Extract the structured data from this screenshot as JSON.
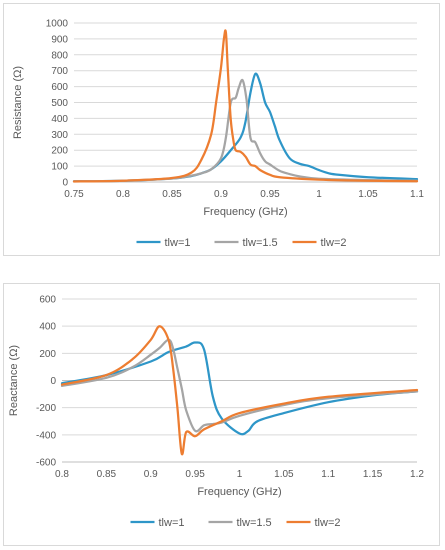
{
  "chart_data": [
    {
      "type": "line",
      "xlabel": "Frequency (GHz)",
      "ylabel": "Resistance (Ω)",
      "xlim": [
        0.75,
        1.1
      ],
      "ylim": [
        0,
        1000
      ],
      "xticks": [
        "0.75",
        "0.8",
        "0.85",
        "0.9",
        "0.95",
        "1",
        "1.05",
        "1.1"
      ],
      "yticks": [
        "0",
        "100",
        "200",
        "300",
        "400",
        "500",
        "600",
        "700",
        "800",
        "900",
        "1000"
      ],
      "grid": "horizontal",
      "legend_position": "bottom",
      "series": [
        {
          "name": "tlw=1",
          "color": "#2e96c8",
          "x": [
            0.75,
            0.8,
            0.85,
            0.87,
            0.88,
            0.89,
            0.9,
            0.91,
            0.92,
            0.925,
            0.93,
            0.935,
            0.94,
            0.945,
            0.95,
            0.955,
            0.96,
            0.97,
            0.98,
            0.99,
            1.0,
            1.01,
            1.02,
            1.05,
            1.1
          ],
          "y": [
            5,
            8,
            22,
            38,
            55,
            80,
            130,
            200,
            280,
            380,
            560,
            680,
            620,
            500,
            440,
            350,
            260,
            150,
            115,
            100,
            75,
            55,
            45,
            30,
            18
          ]
        },
        {
          "name": "tlw=1.5",
          "color": "#a5a5a5",
          "x": [
            0.75,
            0.8,
            0.85,
            0.87,
            0.88,
            0.89,
            0.9,
            0.905,
            0.91,
            0.915,
            0.918,
            0.922,
            0.926,
            0.93,
            0.935,
            0.94,
            0.945,
            0.95,
            0.96,
            0.97,
            0.98,
            1.0,
            1.05,
            1.1
          ],
          "y": [
            5,
            8,
            22,
            40,
            55,
            80,
            150,
            280,
            500,
            530,
            590,
            640,
            520,
            280,
            250,
            180,
            130,
            110,
            70,
            50,
            35,
            20,
            12,
            8
          ]
        },
        {
          "name": "tlw=2",
          "color": "#ed7d31",
          "x": [
            0.75,
            0.8,
            0.85,
            0.87,
            0.88,
            0.89,
            0.895,
            0.9,
            0.903,
            0.905,
            0.907,
            0.91,
            0.913,
            0.915,
            0.92,
            0.925,
            0.93,
            0.935,
            0.94,
            0.95,
            0.96,
            1.0,
            1.05,
            1.1
          ],
          "y": [
            3,
            8,
            25,
            60,
            140,
            300,
            500,
            720,
            900,
            940,
            700,
            390,
            250,
            200,
            190,
            160,
            110,
            100,
            75,
            45,
            30,
            15,
            8,
            5
          ]
        }
      ]
    },
    {
      "type": "line",
      "xlabel": "Frequency (GHz)",
      "ylabel": "Reactance (Ω)",
      "xlim": [
        0.8,
        1.2
      ],
      "ylim": [
        -600,
        600
      ],
      "xticks": [
        "0.8",
        "0.85",
        "0.9",
        "0.95",
        "1",
        "1.05",
        "1.1",
        "1.15",
        "1.2"
      ],
      "yticks": [
        "-600",
        "-400",
        "-200",
        "0",
        "200",
        "400",
        "600"
      ],
      "grid": "horizontal",
      "legend_position": "bottom",
      "series": [
        {
          "name": "tlw=1",
          "color": "#2e96c8",
          "x": [
            0.8,
            0.85,
            0.9,
            0.92,
            0.94,
            0.95,
            0.96,
            0.97,
            0.98,
            1.0,
            1.01,
            1.02,
            1.05,
            1.1,
            1.15,
            1.2
          ],
          "y": [
            -20,
            40,
            140,
            210,
            250,
            280,
            230,
            -120,
            -280,
            -390,
            -370,
            -300,
            -240,
            -160,
            -110,
            -80
          ]
        },
        {
          "name": "tlw=1.5",
          "color": "#a5a5a5",
          "x": [
            0.8,
            0.85,
            0.88,
            0.9,
            0.91,
            0.92,
            0.925,
            0.93,
            0.935,
            0.94,
            0.95,
            0.96,
            0.97,
            0.98,
            1.0,
            1.05,
            1.1,
            1.2
          ],
          "y": [
            -40,
            20,
            100,
            190,
            240,
            300,
            240,
            90,
            -60,
            -220,
            -370,
            -330,
            -320,
            -310,
            -260,
            -180,
            -130,
            -80
          ]
        },
        {
          "name": "tlw=2",
          "color": "#ed7d31",
          "x": [
            0.8,
            0.85,
            0.88,
            0.9,
            0.91,
            0.92,
            0.925,
            0.93,
            0.935,
            0.94,
            0.95,
            0.96,
            0.98,
            1.0,
            1.05,
            1.1,
            1.2
          ],
          "y": [
            -30,
            40,
            160,
            300,
            400,
            300,
            100,
            -200,
            -540,
            -380,
            -410,
            -360,
            -300,
            -240,
            -170,
            -120,
            -70
          ]
        }
      ]
    }
  ]
}
